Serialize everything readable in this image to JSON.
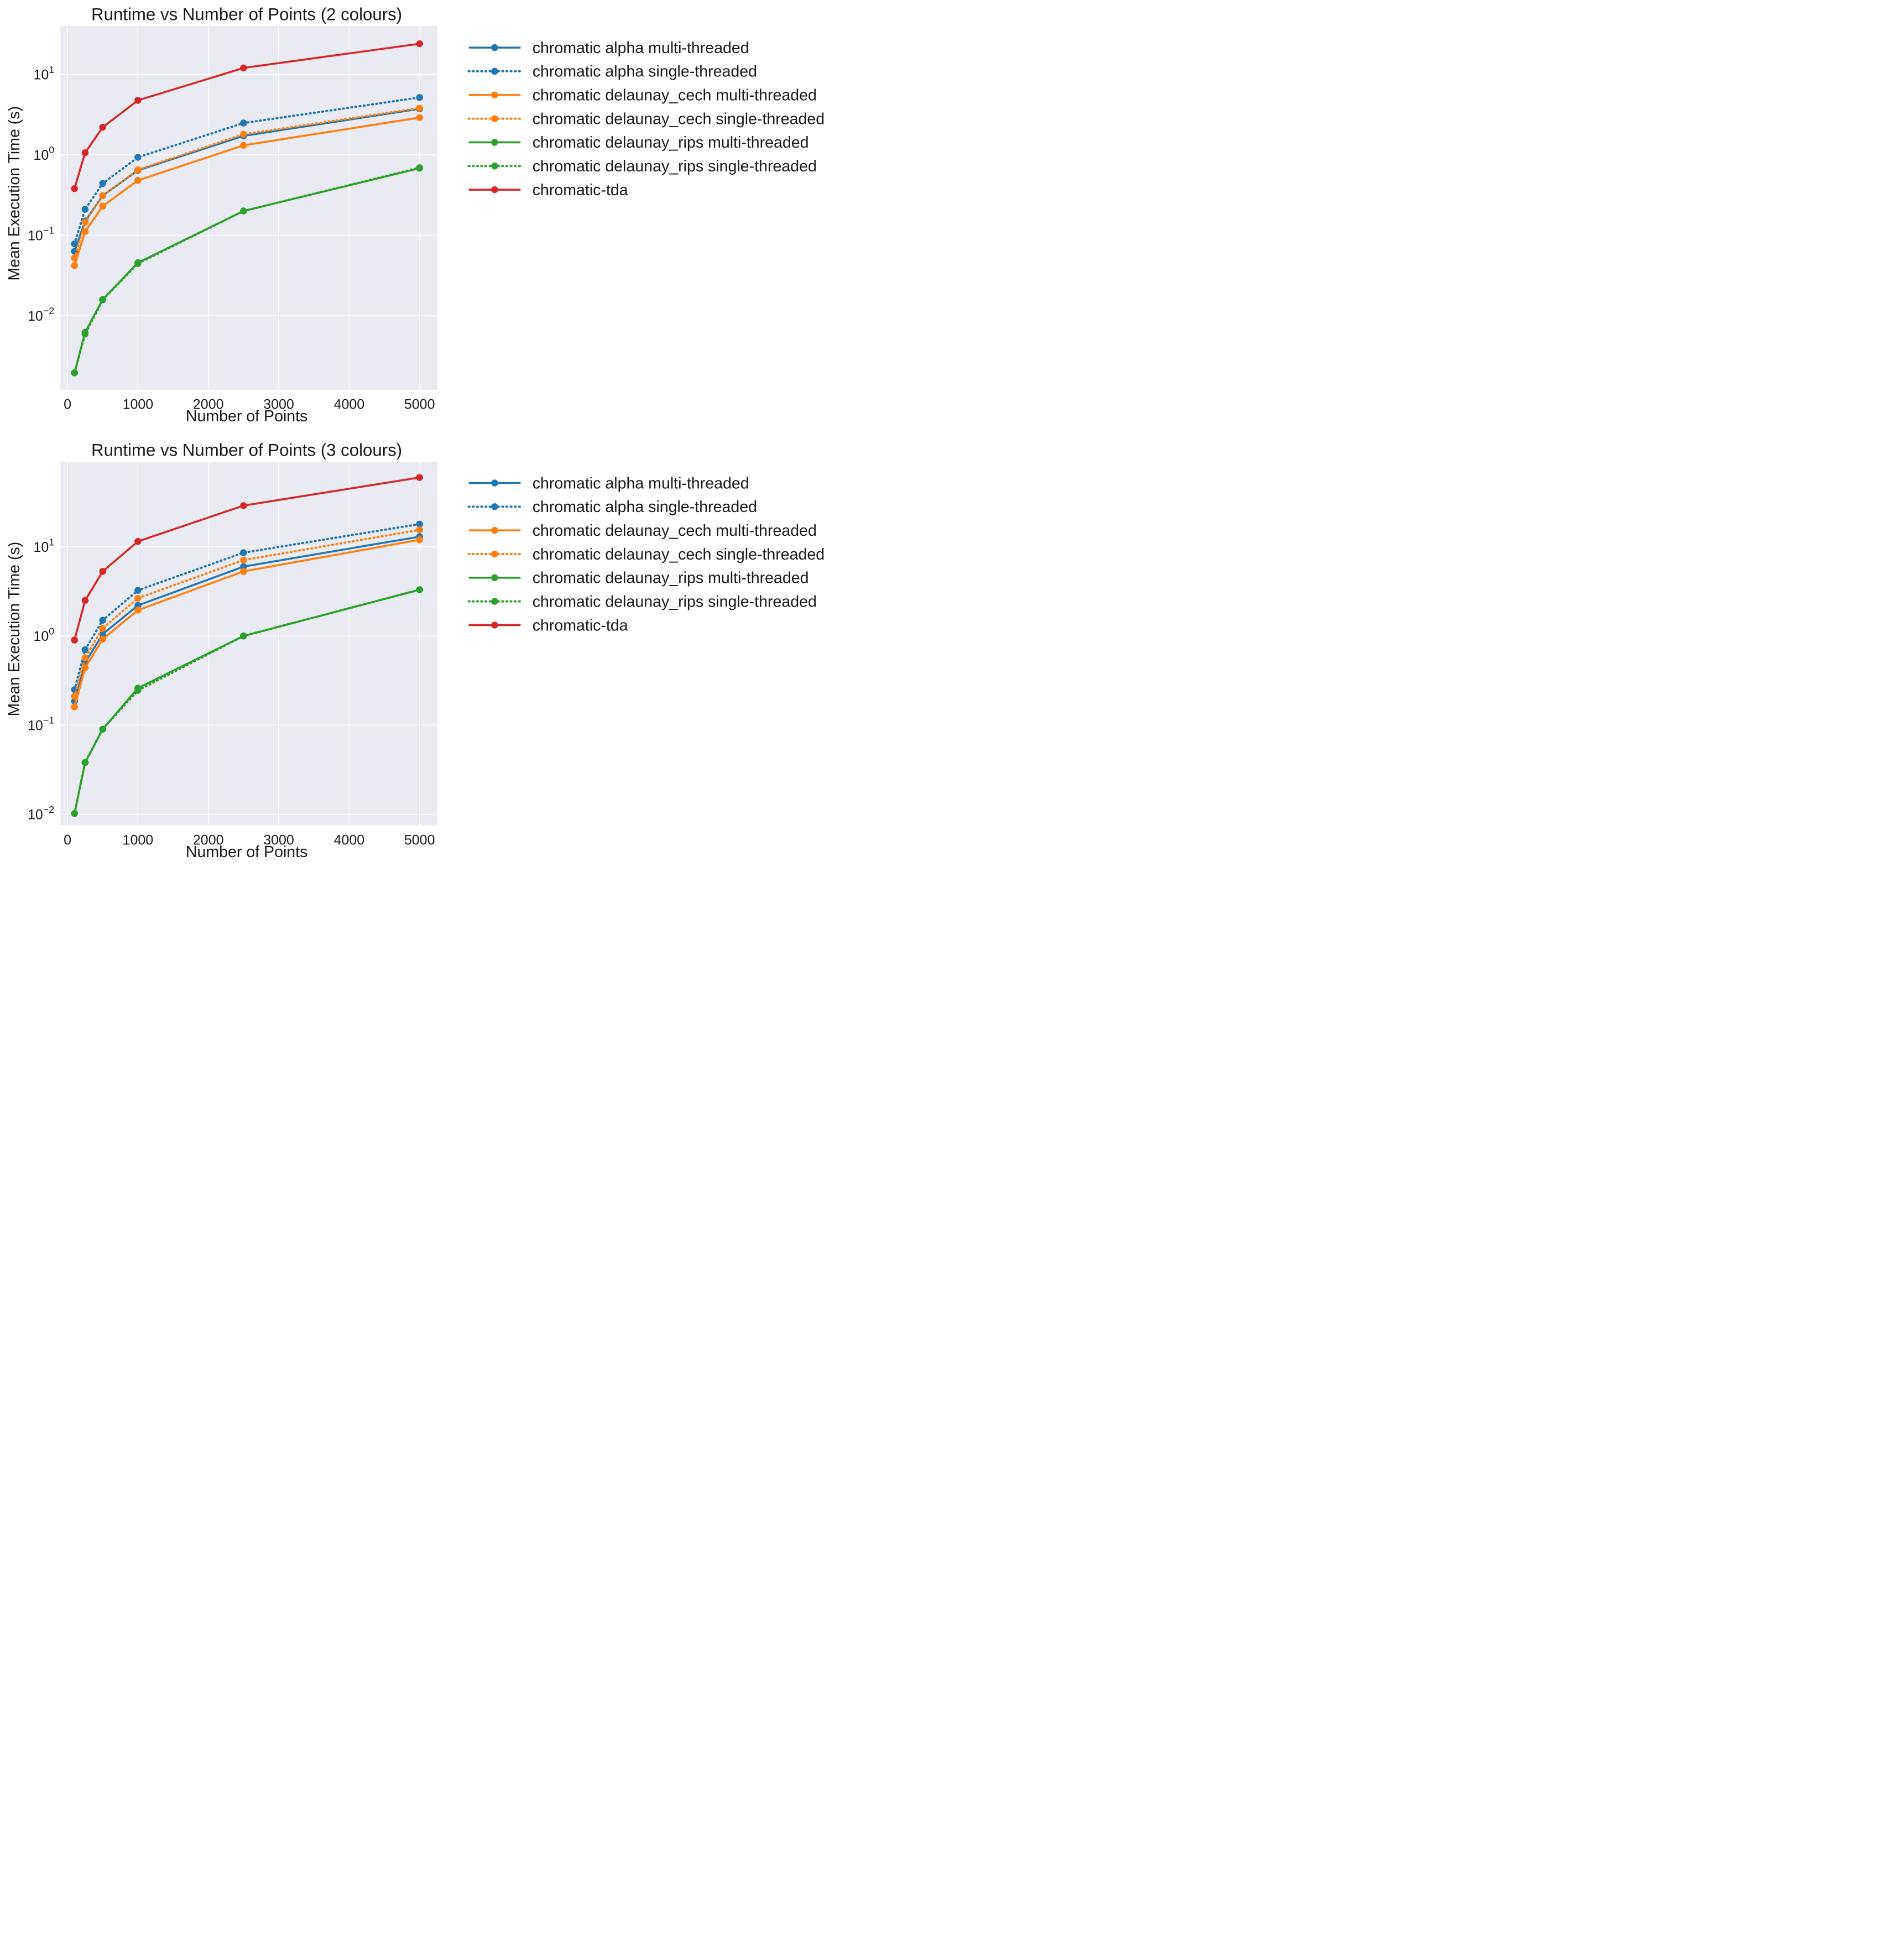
{
  "colors": {
    "background": "#ffffff",
    "plot_background": "#EAEAF2",
    "grid": "#ffffff",
    "alpha": "#1F77B4",
    "delaunay_cech": "#FF7F0E",
    "delaunay_rips": "#2CA02C",
    "chromatic_tda": "#D62728"
  },
  "chart_data": [
    {
      "type": "line",
      "title": "Runtime vs Number of Points (2 colours)",
      "xlabel": "Number of Points",
      "ylabel": "Mean Execution Time (s)",
      "xscale": "linear",
      "yscale": "log",
      "xlim": [
        -100,
        5250
      ],
      "ylim": [
        0.0012,
        40
      ],
      "xticks": [
        0,
        1000,
        2000,
        3000,
        4000,
        5000
      ],
      "xtick_labels": [
        "0",
        "1000",
        "2000",
        "3000",
        "4000",
        "5000"
      ],
      "yticks": [
        0.01,
        0.1,
        1,
        10
      ],
      "ytick_labels": [
        {
          "base": "10",
          "exp": "−2"
        },
        {
          "base": "10",
          "exp": "−1"
        },
        {
          "base": "10",
          "exp": "0"
        },
        {
          "base": "10",
          "exp": "1"
        }
      ],
      "grid": true,
      "legend_position": "outside-right-top",
      "x": [
        100,
        250,
        500,
        1000,
        2500,
        5000
      ],
      "series": [
        {
          "name": "chromatic alpha multi-threaded",
          "color_key": "alpha",
          "dashed": false,
          "values": [
            0.063,
            0.15,
            0.31,
            0.64,
            1.72,
            3.72
          ]
        },
        {
          "name": "chromatic alpha single-threaded",
          "color_key": "alpha",
          "dashed": true,
          "values": [
            0.078,
            0.21,
            0.44,
            0.93,
            2.48,
            5.15
          ]
        },
        {
          "name": "chromatic delaunay_cech multi-threaded",
          "color_key": "delaunay_cech",
          "dashed": false,
          "values": [
            0.042,
            0.111,
            0.23,
            0.48,
            1.31,
            2.9
          ]
        },
        {
          "name": "chromatic delaunay_cech single-threaded",
          "color_key": "delaunay_cech",
          "dashed": true,
          "values": [
            0.052,
            0.145,
            0.31,
            0.65,
            1.8,
            3.8
          ]
        },
        {
          "name": "chromatic delaunay_rips multi-threaded",
          "color_key": "delaunay_rips",
          "dashed": false,
          "values": [
            0.00195,
            0.0062,
            0.0159,
            0.0455,
            0.2,
            0.68
          ]
        },
        {
          "name": "chromatic delaunay_rips single-threaded",
          "color_key": "delaunay_rips",
          "dashed": true,
          "values": [
            0.00195,
            0.0059,
            0.0157,
            0.0445,
            0.2,
            0.69
          ]
        },
        {
          "name": "chromatic-tda",
          "color_key": "chromatic_tda",
          "dashed": false,
          "values": [
            0.38,
            1.06,
            2.2,
            4.75,
            12.0,
            24.0
          ]
        }
      ]
    },
    {
      "type": "line",
      "title": "Runtime vs Number of Points (3 colours)",
      "xlabel": "Number of Points",
      "ylabel": "Mean Execution Time (s)",
      "xscale": "linear",
      "yscale": "log",
      "xlim": [
        -100,
        5250
      ],
      "ylim": [
        0.0075,
        90
      ],
      "xticks": [
        0,
        1000,
        2000,
        3000,
        4000,
        5000
      ],
      "xtick_labels": [
        "0",
        "1000",
        "2000",
        "3000",
        "4000",
        "5000"
      ],
      "yticks": [
        0.01,
        0.1,
        1,
        10
      ],
      "ytick_labels": [
        {
          "base": "10",
          "exp": "−2"
        },
        {
          "base": "10",
          "exp": "−1"
        },
        {
          "base": "10",
          "exp": "0"
        },
        {
          "base": "10",
          "exp": "1"
        }
      ],
      "grid": true,
      "legend_position": "outside-right-top",
      "x": [
        100,
        250,
        500,
        1000,
        2500,
        5000
      ],
      "series": [
        {
          "name": "chromatic alpha multi-threaded",
          "color_key": "alpha",
          "dashed": false,
          "values": [
            0.185,
            0.5,
            1.05,
            2.2,
            6.0,
            13.0
          ]
        },
        {
          "name": "chromatic alpha single-threaded",
          "color_key": "alpha",
          "dashed": true,
          "values": [
            0.25,
            0.7,
            1.5,
            3.25,
            8.6,
            18.0
          ]
        },
        {
          "name": "chromatic delaunay_cech multi-threaded",
          "color_key": "delaunay_cech",
          "dashed": false,
          "values": [
            0.16,
            0.44,
            0.92,
            1.95,
            5.3,
            12.0
          ]
        },
        {
          "name": "chromatic delaunay_cech single-threaded",
          "color_key": "delaunay_cech",
          "dashed": true,
          "values": [
            0.21,
            0.57,
            1.22,
            2.65,
            7.1,
            15.5
          ]
        },
        {
          "name": "chromatic delaunay_rips multi-threaded",
          "color_key": "delaunay_rips",
          "dashed": false,
          "values": [
            0.0102,
            0.038,
            0.09,
            0.26,
            1.0,
            3.3
          ]
        },
        {
          "name": "chromatic delaunay_rips single-threaded",
          "color_key": "delaunay_rips",
          "dashed": true,
          "values": [
            0.0102,
            0.038,
            0.09,
            0.245,
            1.0,
            3.3
          ]
        },
        {
          "name": "chromatic-tda",
          "color_key": "chromatic_tda",
          "dashed": false,
          "values": [
            0.9,
            2.5,
            5.3,
            11.5,
            29.0,
            60.0
          ]
        }
      ]
    }
  ]
}
